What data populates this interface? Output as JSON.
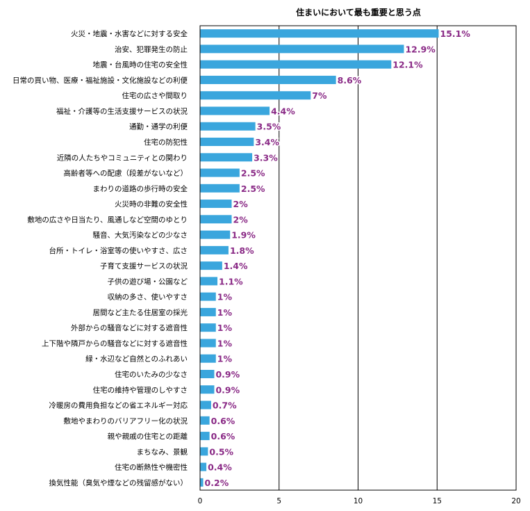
{
  "chart_data": {
    "type": "bar",
    "orientation": "horizontal",
    "title": "住まいにおいて最も重要と思う点",
    "xlabel": "",
    "ylabel": "",
    "xlim": [
      0,
      20
    ],
    "x_ticks": [
      0,
      5,
      10,
      15,
      20
    ],
    "grid": "vertical",
    "bar_color": "#3aa6dd",
    "value_label_color": "#8a2a86",
    "categories": [
      "火災・地震・水害などに対する安全",
      "治安、犯罪発生の防止",
      "地震・台風時の住宅の安全性",
      "日常の買い物、医療・福祉施設・文化施設などの利便",
      "住宅の広さや間取り",
      "福祉・介護等の生活支援サービスの状況",
      "通勤・通学の利便",
      "住宅の防犯性",
      "近隣の人たちやコミュニティとの関わり",
      "高齢者等への配慮（段差がないなど）",
      "まわりの道路の歩行時の安全",
      "火災時の非難の安全性",
      "敷地の広さや日当たり、風通しなど空間のゆとり",
      "騒音、大気汚染などの少なさ",
      "台所・トイレ・浴室等の使いやすさ、広さ",
      "子育て支援サービスの状況",
      "子供の遊び場・公園など",
      "収納の多さ、使いやすさ",
      "居間など主たる住居室の採光",
      "外部からの騒音などに対する遮音性",
      "上下階や隣戸からの騒音などに対する遮音性",
      "緑・水辺など自然とのふれあい",
      "住宅のいたみの少なさ",
      "住宅の維持や管理のしやすさ",
      "冷暖房の費用負担などの省エネルギー対応",
      "敷地やまわりのバリアフリー化の状況",
      "親や親戚の住宅との距離",
      "まちなみ、景観",
      "住宅の断熱性や機密性",
      "換気性能（臭気や煙などの残留感がない）"
    ],
    "values": [
      15.1,
      12.9,
      12.1,
      8.6,
      7,
      4.4,
      3.5,
      3.4,
      3.3,
      2.5,
      2.5,
      2,
      2,
      1.9,
      1.8,
      1.4,
      1.1,
      1,
      1,
      1,
      1,
      1,
      0.9,
      0.9,
      0.7,
      0.6,
      0.6,
      0.5,
      0.4,
      0.2
    ],
    "value_labels": [
      "15.1%",
      "12.9%",
      "12.1%",
      "8.6%",
      "7%",
      "4.4%",
      "3.5%",
      "3.4%",
      "3.3%",
      "2.5%",
      "2.5%",
      "2%",
      "2%",
      "1.9%",
      "1.8%",
      "1.4%",
      "1.1%",
      "1%",
      "1%",
      "1%",
      "1%",
      "1%",
      "0.9%",
      "0.9%",
      "0.7%",
      "0.6%",
      "0.6%",
      "0.5%",
      "0.4%",
      "0.2%"
    ]
  }
}
